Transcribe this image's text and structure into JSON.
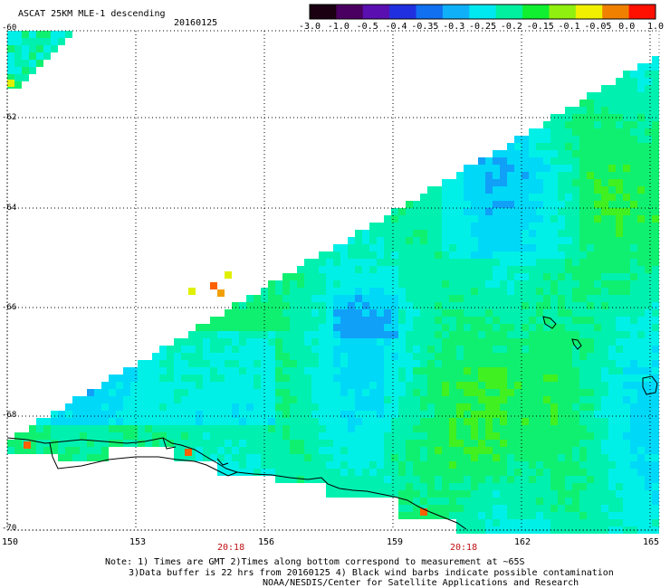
{
  "header": {
    "title": "ASCAT 25KM MLE-1 descending",
    "date": "20160125"
  },
  "colorbar": {
    "labels": [
      "-3.0",
      "-1.0",
      "-0.5",
      "-0.4",
      "-0.35",
      "-0.3",
      "-0.25",
      "-0.2",
      "-0.15",
      "-0.1",
      "-0.05",
      "0.0",
      "1.0"
    ],
    "colors": [
      "#1a0010",
      "#4a0060",
      "#5a10b0",
      "#2030e0",
      "#1070f0",
      "#10b0f8",
      "#00e8f0",
      "#00f0a0",
      "#10f030",
      "#90f010",
      "#f0f000",
      "#f08000",
      "#ff1000"
    ]
  },
  "axes": {
    "y_labels": [
      "-60",
      "-62",
      "-64",
      "-66",
      "-68",
      "-70"
    ],
    "x_labels": [
      "150",
      "153",
      "156",
      "159",
      "162",
      "165"
    ],
    "time_labels": [
      "20:18",
      "20:18"
    ]
  },
  "notes": {
    "line1": "Note: 1) Times are GMT 2)Times along bottom correspond to measurement at ~65S",
    "line2": "3)Data buffer is 22 hrs from 20160125 4) Black wind barbs indicate possible contamination",
    "line3": "NOAA/NESDIS/Center for Satellite Applications and Research"
  }
}
